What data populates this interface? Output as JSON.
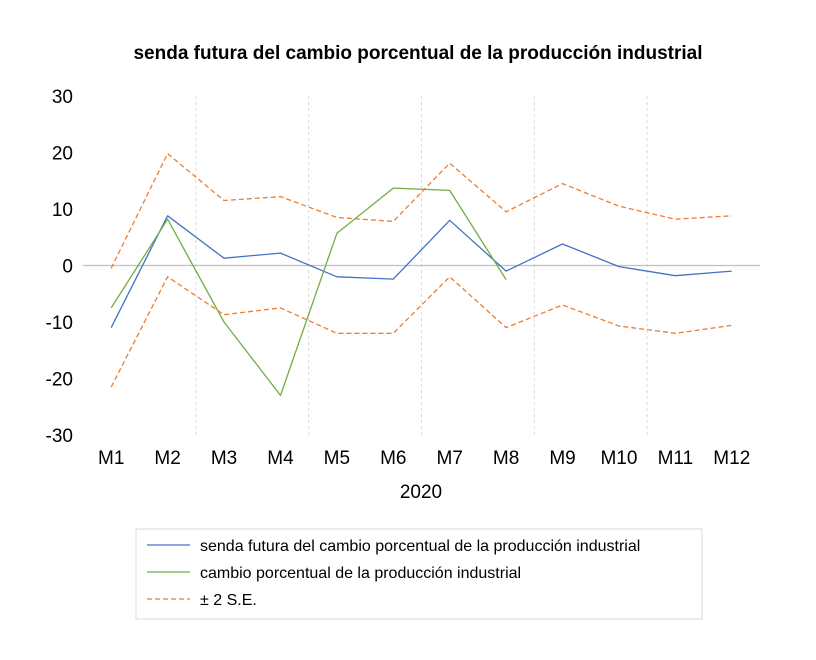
{
  "chart_data": {
    "type": "line",
    "title": "senda futura del cambio porcentual de la producción industrial",
    "xlabel": "2020",
    "ylabel": "",
    "categories": [
      "M1",
      "M2",
      "M3",
      "M4",
      "M5",
      "M6",
      "M7",
      "M8",
      "M9",
      "M10",
      "M11",
      "M12"
    ],
    "ylim": [
      -30,
      30
    ],
    "yticks": [
      30,
      20,
      10,
      0,
      -10,
      -20,
      -30
    ],
    "grid": "vertical dashed between category groups",
    "legend_position": "bottom",
    "series": [
      {
        "name": "senda futura del cambio porcentual de la producción industrial",
        "color": "#4472C4",
        "style": "solid",
        "values": [
          -11,
          8.8,
          1.3,
          2.2,
          -2,
          -2.4,
          8,
          -1,
          3.8,
          -0.2,
          -1.8,
          -1
        ]
      },
      {
        "name": "cambio porcentual de la producción industrial",
        "color": "#70AD47",
        "style": "solid",
        "values": [
          -7.5,
          8.2,
          -10,
          -23,
          5.7,
          13.7,
          13.3,
          -2.5,
          null,
          null,
          null,
          null
        ]
      },
      {
        "name": "± 2 S.E.",
        "color": "#ED7D31",
        "style": "dashed",
        "values": [
          -0.5,
          19.8,
          11.5,
          12.2,
          8.5,
          7.8,
          18.1,
          9.5,
          14.5,
          10.5,
          8.2,
          8.8
        ]
      },
      {
        "name": "",
        "color": "#ED7D31",
        "style": "dashed",
        "values": [
          -21.5,
          -2,
          -8.7,
          -7.5,
          -12,
          -12,
          -2,
          -11,
          -7,
          -10.7,
          -12,
          -10.6
        ]
      }
    ],
    "legend": [
      {
        "label": "senda futura del cambio porcentual de la producción industrial",
        "color": "#4472C4",
        "style": "solid"
      },
      {
        "label": "cambio porcentual de la producción industrial",
        "color": "#70AD47",
        "style": "solid"
      },
      {
        "label": "± 2 S.E.",
        "color": "#ED7D31",
        "style": "dashed"
      }
    ]
  }
}
